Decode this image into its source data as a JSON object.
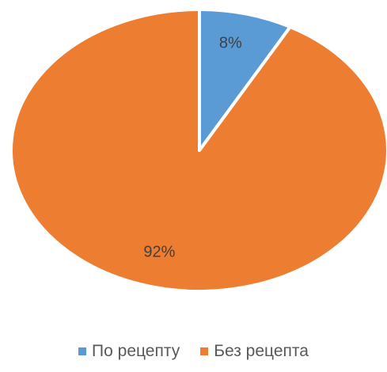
{
  "chart_data": {
    "type": "pie",
    "categories": [
      "По рецепту",
      "Без рецепта"
    ],
    "values": [
      8,
      92
    ],
    "data_labels": [
      "8%",
      "92%"
    ],
    "colors": [
      "#5b9bd5",
      "#ed7d31"
    ],
    "legend_position": "bottom",
    "start_angle": "12-o-clock",
    "direction": "clockwise"
  }
}
